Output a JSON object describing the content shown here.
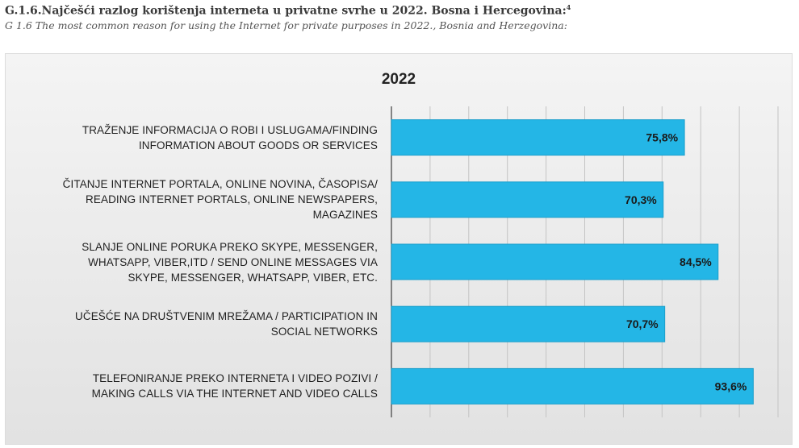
{
  "header": {
    "title": "G.1.6.Najčešći razlog korištenja interneta u privatne svrhe u 2022. Bosna i Hercegovina:",
    "footnote_marker": "4",
    "subtitle": "G 1.6 The most common reason for using the Internet for private purposes in 2022., Bosnia and Herzegovina:"
  },
  "chart_data": {
    "type": "bar",
    "orientation": "horizontal",
    "title": "2022",
    "categories": [
      [
        "TRAŽENJE INFORMACIJA O ROBI I USLUGAMA/FINDING",
        "INFORMATION ABOUT GOODS OR SERVICES"
      ],
      [
        "ČITANJE INTERNET PORTALA, ONLINE NOVINA, ČASOPISA/",
        "READING INTERNET PORTALS, ONLINE NEWSPAPERS,",
        "MAGAZINES"
      ],
      [
        "SLANJE ONLINE PORUKA PREKO SKYPE, MESSENGER,",
        "WHATSAPP, VIBER,ITD / SEND ONLINE MESSAGES VIA",
        "SKYPE, MESSENGER, WHATSAPP, VIBER, ETC."
      ],
      [
        "UČEŠĆE NA DRUŠTVENIM MREŽAMA / PARTICIPATION IN",
        "SOCIAL NETWORKS"
      ],
      [
        "TELEFONIRANJE PREKO INTERNETA I VIDEO POZIVI /",
        "MAKING CALLS VIA THE INTERNET AND VIDEO CALLS"
      ]
    ],
    "values": [
      75.8,
      70.3,
      84.5,
      70.7,
      93.6
    ],
    "data_labels": [
      "75,8%",
      "70,3%",
      "84,5%",
      "70,7%",
      "93,6%"
    ],
    "xlim": [
      0,
      100
    ],
    "grid": true,
    "legend": "none",
    "colors": {
      "bar": "#24b6e6",
      "bar_edge": "#1c9fcb",
      "grid": "#c4c4c4",
      "axis": "#555555"
    }
  }
}
